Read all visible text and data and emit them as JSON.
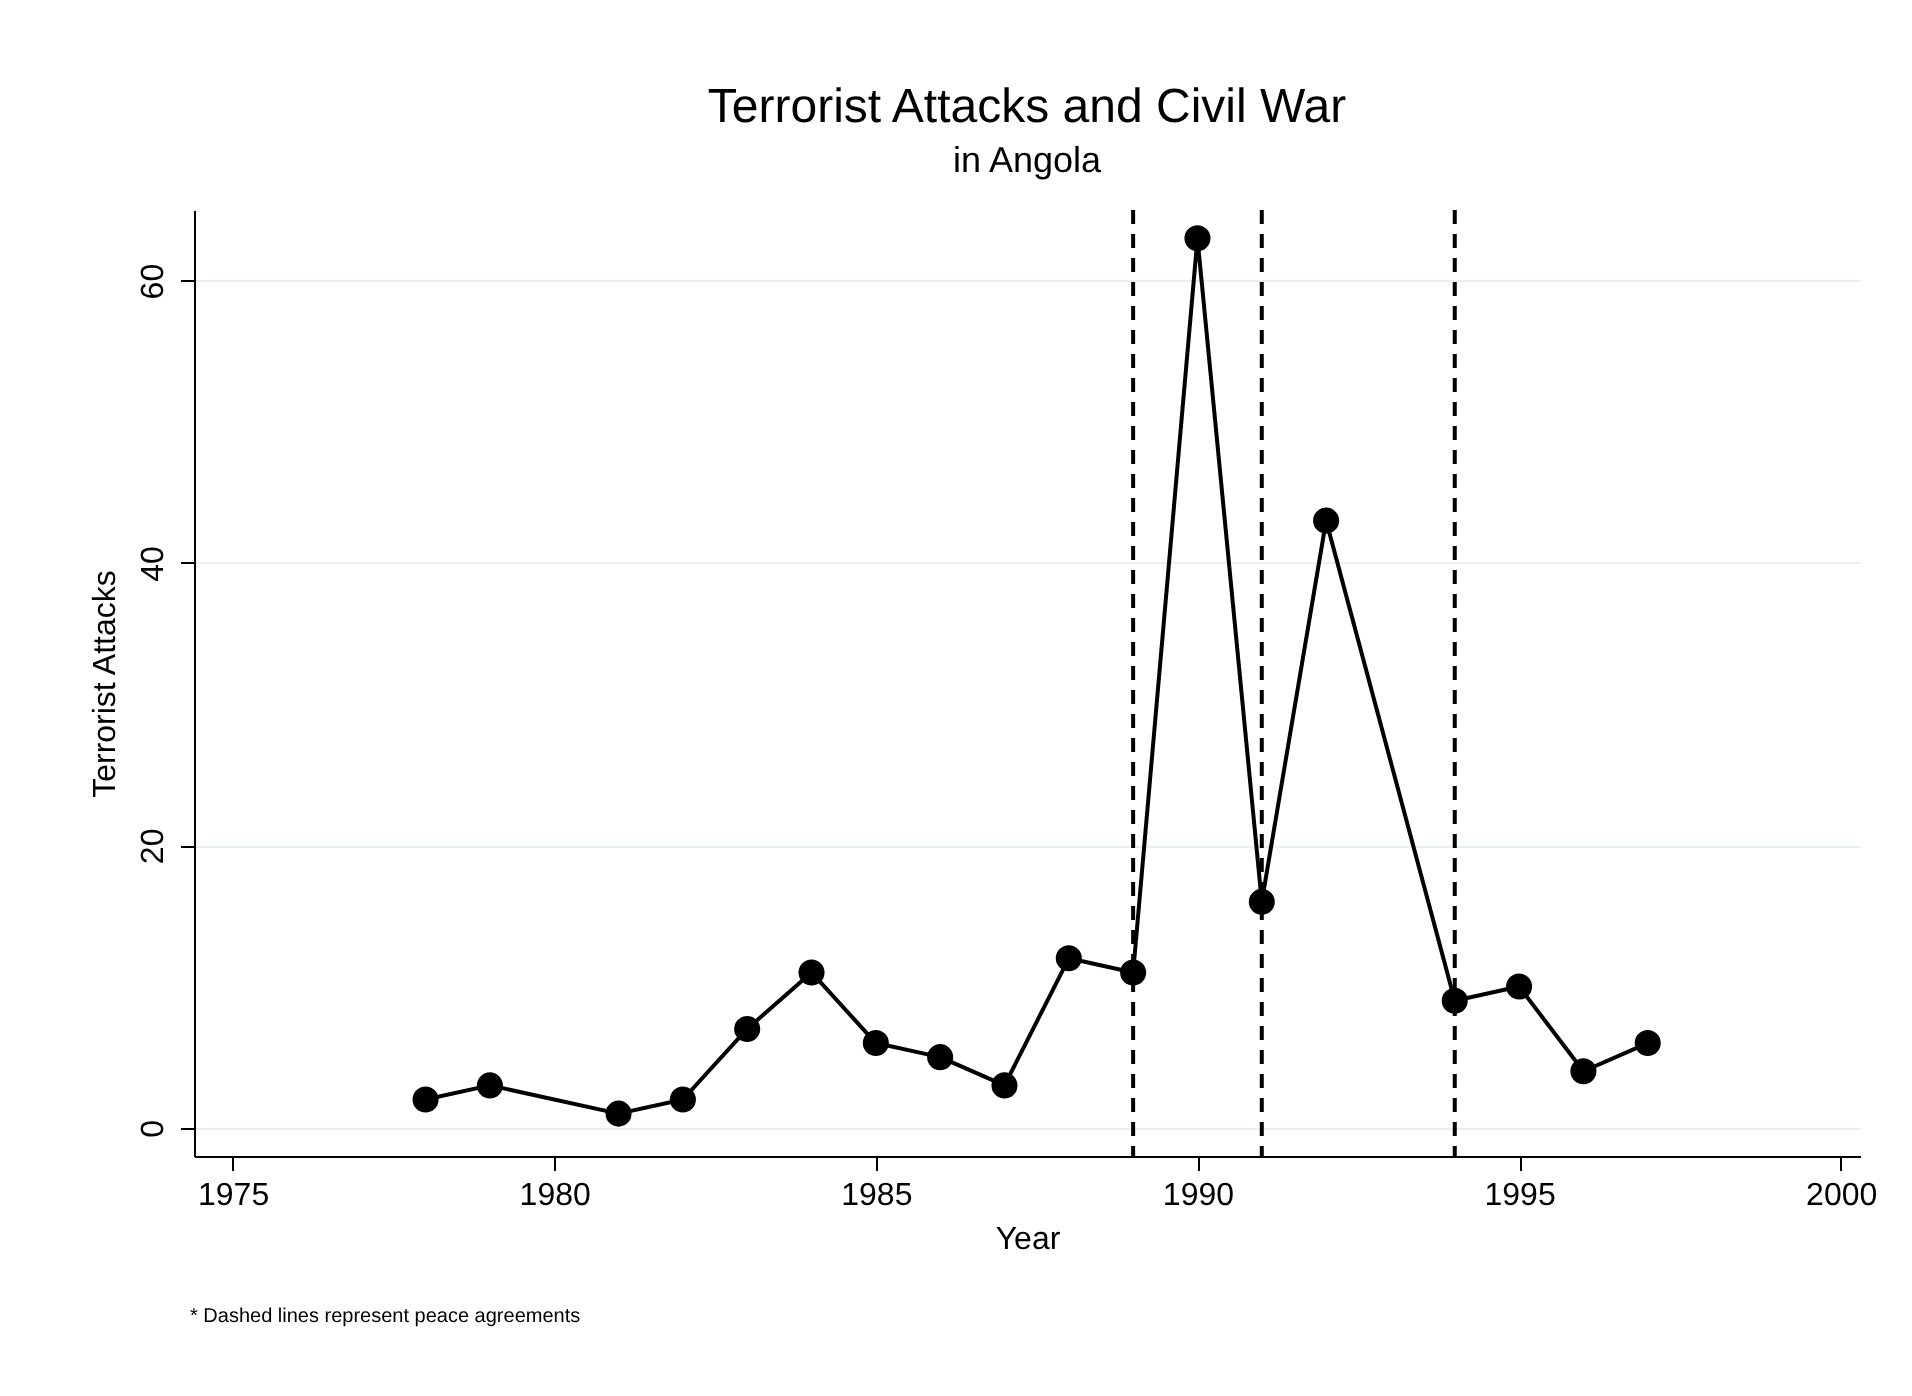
{
  "chart_data": {
    "type": "line",
    "title": "Terrorist Attacks and Civil War",
    "subtitle": "in Angola",
    "xlabel": "Year",
    "ylabel": "Terrorist Attacks",
    "x": [
      1978,
      1979,
      1981,
      1982,
      1983,
      1984,
      1985,
      1986,
      1987,
      1988,
      1989,
      1990,
      1991,
      1992,
      1994,
      1995,
      1996,
      1997
    ],
    "series": [
      {
        "color": "#000000",
        "values": [
          2,
          3,
          1,
          2,
          7,
          11,
          6,
          5,
          3,
          12,
          11,
          63,
          16,
          43,
          9,
          10,
          4,
          6
        ]
      }
    ],
    "xlim": [
      1974.4,
      2000.3
    ],
    "xticks": [
      1975,
      1980,
      1985,
      1990,
      1995,
      2000
    ],
    "ylim": [
      -2,
      65
    ],
    "yticks": [
      0,
      20,
      40,
      60
    ],
    "grid": "y",
    "marker": "circle",
    "line_style": "solid",
    "ref_lines": [
      {
        "axis": "x",
        "value": 1989,
        "color": "#000000",
        "line_style": "dashed"
      },
      {
        "axis": "x",
        "value": 1991,
        "color": "#000000",
        "line_style": "dashed"
      },
      {
        "axis": "x",
        "value": 1994,
        "color": "#000000",
        "line_style": "dashed"
      }
    ],
    "annotations": [
      "* Dashed lines represent peace agreements"
    ]
  }
}
